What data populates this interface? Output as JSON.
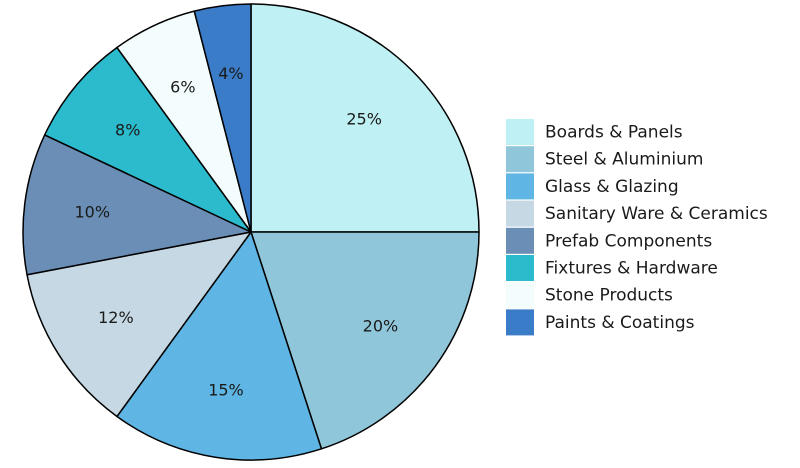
{
  "chart_data": {
    "type": "pie",
    "title": "",
    "categories": [
      "Boards & Panels",
      "Steel & Aluminium",
      "Glass & Glazing",
      "Sanitary Ware & Ceramics",
      "Prefab Components",
      "Fixtures & Hardware",
      "Stone Products",
      "Paints & Coatings"
    ],
    "values": [
      25,
      20,
      15,
      12,
      10,
      8,
      6,
      4
    ],
    "labels": [
      "25%",
      "20%",
      "15%",
      "12%",
      "10%",
      "8%",
      "6%",
      "4%"
    ],
    "colors": [
      "#bff0f3",
      "#90c6da",
      "#5fb5e3",
      "#c5d8e4",
      "#6a8eb6",
      "#2bbbcc",
      "#f4fdfd",
      "#3b7cc8"
    ],
    "legend_position": "right",
    "start_angle": "top",
    "direction": "clockwise",
    "outline_color": "#000000"
  }
}
